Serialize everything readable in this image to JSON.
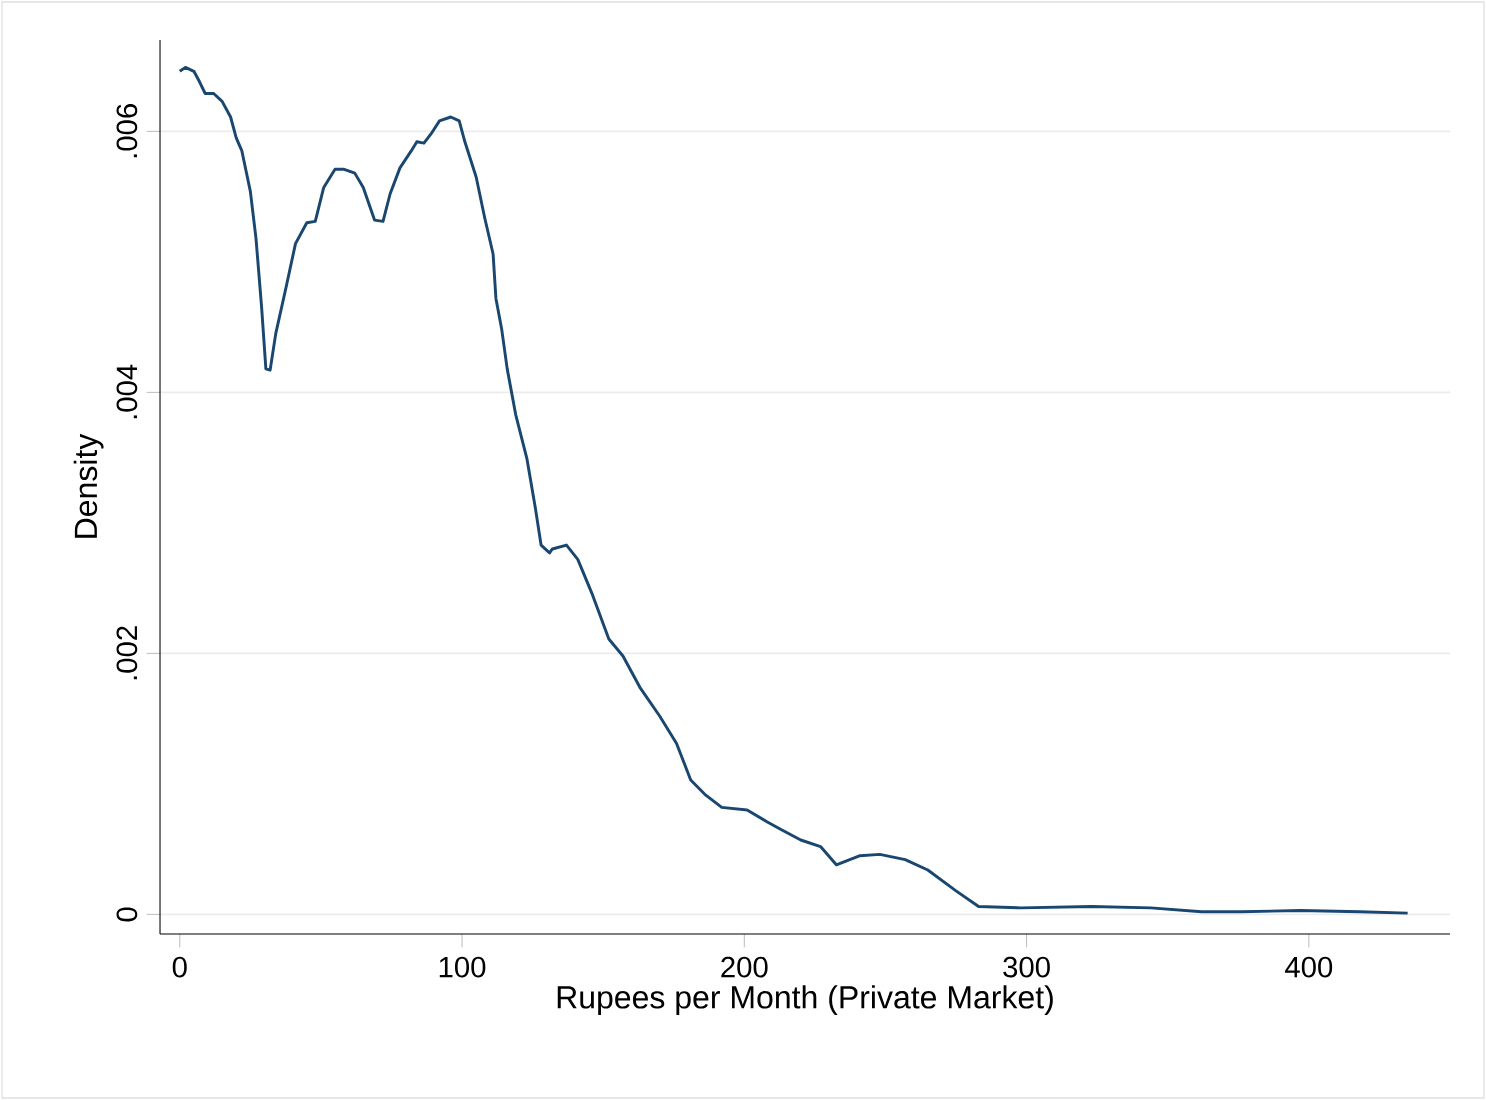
{
  "chart_data": {
    "type": "line",
    "xlabel": "Rupees per Month (Private Market)",
    "ylabel": "Density",
    "x": [
      0,
      2,
      5,
      7,
      9,
      12,
      15,
      18,
      20,
      22,
      25,
      27,
      29,
      30.5,
      32,
      34,
      37.6,
      41,
      45,
      48,
      51,
      55,
      58,
      62,
      65,
      69,
      72,
      74.5,
      78,
      82,
      84,
      86.5,
      89,
      92,
      96,
      99,
      101,
      105,
      108,
      111,
      112,
      114,
      116,
      119,
      123,
      126,
      128,
      131,
      132,
      137,
      141,
      146,
      152,
      157,
      163,
      170,
      176,
      181,
      186,
      192,
      201,
      208,
      213,
      220,
      227,
      232.6,
      241,
      248,
      257,
      265,
      275,
      283,
      298,
      323,
      344,
      362,
      376,
      397,
      418,
      435
    ],
    "series": [
      {
        "color": "#1a476f",
        "values": [
          0.00646,
          0.00649,
          0.00646,
          0.00638,
          0.00629,
          0.00629,
          0.00623,
          0.00611,
          0.00595,
          0.00585,
          0.00554,
          0.00518,
          0.00465,
          0.00418,
          0.00417,
          0.00445,
          0.0048,
          0.00514,
          0.0053,
          0.00531,
          0.00557,
          0.00571,
          0.00571,
          0.00568,
          0.00557,
          0.00532,
          0.00531,
          0.00552,
          0.00572,
          0.00585,
          0.00592,
          0.00591,
          0.00598,
          0.00608,
          0.00611,
          0.00608,
          0.00592,
          0.00565,
          0.00534,
          0.00506,
          0.00472,
          0.00449,
          0.00418,
          0.00383,
          0.00349,
          0.00311,
          0.00283,
          0.00277,
          0.0028,
          0.00283,
          0.00272,
          0.00246,
          0.00211,
          0.00198,
          0.00174,
          0.00152,
          0.00131,
          0.00103,
          0.00092,
          0.00082,
          0.0008,
          0.00071,
          0.00065,
          0.00057,
          0.00052,
          0.00038,
          0.00045,
          0.00046,
          0.00042,
          0.00034,
          0.00018,
          6e-05,
          5e-05,
          6e-05,
          5e-05,
          2e-05,
          2e-05,
          3e-05,
          2e-05,
          1e-05
        ]
      }
    ],
    "xlim": [
      -7,
      450
    ],
    "ylim": [
      -0.00015,
      0.0067
    ],
    "xticks": [
      0,
      100,
      200,
      300,
      400
    ],
    "yticks": [
      0,
      {
        "value": 0.002,
        "label": ".002"
      },
      {
        "value": 0.004,
        "label": ".004"
      },
      {
        "value": 0.006,
        "label": ".006"
      }
    ],
    "grid": "y",
    "marker": "none",
    "line_style": "solid"
  }
}
